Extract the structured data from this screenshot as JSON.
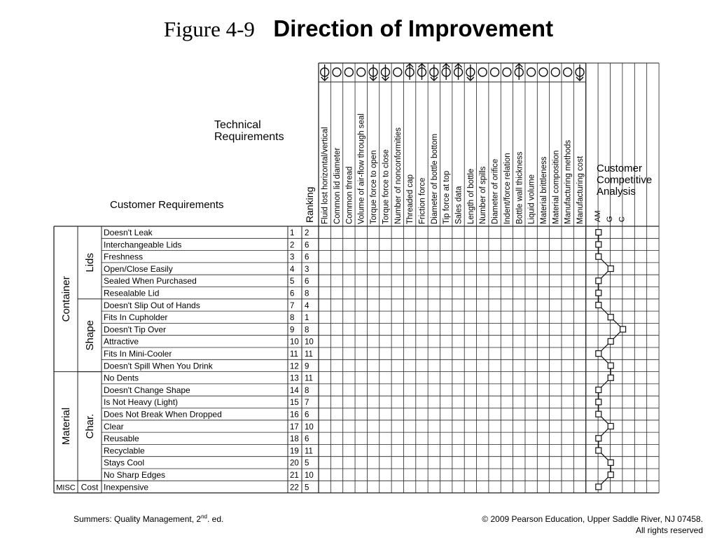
{
  "title": {
    "figure": "Figure 4-9",
    "heading": "Direction of Improvement"
  },
  "labels": {
    "technical_requirements": [
      "Technical",
      "Requirements"
    ],
    "customer_requirements": "Customer Requirements",
    "ranking": "Ranking",
    "competitive_analysis": [
      "Customer",
      "Competitive",
      "Analysis"
    ],
    "competitors": [
      "AM",
      "G",
      "C"
    ]
  },
  "technical_requirements": [
    {
      "label": "Fluid lost horizontal/vertical",
      "direction": "target-down"
    },
    {
      "label": "Common lid diameter",
      "direction": "target"
    },
    {
      "label": "Common thread",
      "direction": "target"
    },
    {
      "label": "Volume of air-flow through seal",
      "direction": "target"
    },
    {
      "label": "Torque force to open",
      "direction": "target-down"
    },
    {
      "label": "Torque force to close",
      "direction": "target-down"
    },
    {
      "label": "Number of nonconformities",
      "direction": "target"
    },
    {
      "label": "Threaded cap",
      "direction": "target-up"
    },
    {
      "label": "Friction force",
      "direction": "target-up"
    },
    {
      "label": "Diameter of bottle bottom",
      "direction": "target-down"
    },
    {
      "label": "Tip force at top",
      "direction": "target-up"
    },
    {
      "label": "Sales data",
      "direction": "target-up"
    },
    {
      "label": "Length of bottle",
      "direction": "target-down"
    },
    {
      "label": "Number of spills",
      "direction": "target"
    },
    {
      "label": "Diameter of orifice",
      "direction": "target"
    },
    {
      "label": "Indent/force relation",
      "direction": "target"
    },
    {
      "label": "Bottle wall thickness",
      "direction": "target-up"
    },
    {
      "label": "Liquid volume",
      "direction": "target"
    },
    {
      "label": "Material brittleness",
      "direction": "target"
    },
    {
      "label": "Material composition",
      "direction": "target"
    },
    {
      "label": "Manufacturing methods",
      "direction": "target"
    },
    {
      "label": "Manufacturing cost",
      "direction": "target-down"
    }
  ],
  "groups": [
    {
      "outer": "Container",
      "inner": [
        {
          "label": "Lids",
          "rows": 6
        },
        {
          "label": "Shape",
          "rows": 6
        }
      ]
    },
    {
      "outer": "Material",
      "inner": [
        {
          "label": "Char.",
          "rows": 9
        }
      ]
    },
    {
      "outer": "MISC",
      "inner": [
        {
          "label": "Cost",
          "rows": 1
        }
      ]
    }
  ],
  "customer_requirements": [
    {
      "name": "Doesn't Leak",
      "num": "1",
      "rank": "2",
      "am": 1
    },
    {
      "name": "Interchangeable Lids",
      "num": "2",
      "rank": "6",
      "am": 1
    },
    {
      "name": "Freshness",
      "num": "3",
      "rank": "6",
      "am": 1
    },
    {
      "name": "Open/Close Easily",
      "num": "4",
      "rank": "3",
      "am": 2
    },
    {
      "name": "Sealed When Purchased",
      "num": "5",
      "rank": "6",
      "am": 1
    },
    {
      "name": "Resealable Lid",
      "num": "6",
      "rank": "8",
      "am": 1
    },
    {
      "name": "Doesn't Slip Out of Hands",
      "num": "7",
      "rank": "4",
      "am": 1
    },
    {
      "name": "Fits In Cupholder",
      "num": "8",
      "rank": "1",
      "am": 2
    },
    {
      "name": "Doesn't Tip Over",
      "num": "9",
      "rank": "8",
      "am": 3
    },
    {
      "name": "Attractive",
      "num": "10",
      "rank": "10",
      "am": 2
    },
    {
      "name": "Fits In Mini-Cooler",
      "num": "11",
      "rank": "11",
      "am": 1
    },
    {
      "name": "Doesn't Spill When You Drink",
      "num": "12",
      "rank": "9",
      "am": 2
    },
    {
      "name": "No Dents",
      "num": "13",
      "rank": "11",
      "am": 2
    },
    {
      "name": "Doesn't Change Shape",
      "num": "14",
      "rank": "8",
      "am": 1
    },
    {
      "name": "Is Not Heavy (Light)",
      "num": "15",
      "rank": "7",
      "am": 1
    },
    {
      "name": "Does Not Break When Dropped",
      "num": "16",
      "rank": "6",
      "am": 1
    },
    {
      "name": "Clear",
      "num": "17",
      "rank": "10",
      "am": 2
    },
    {
      "name": "Reusable",
      "num": "18",
      "rank": "6",
      "am": 1
    },
    {
      "name": "Recyclable",
      "num": "19",
      "rank": "11",
      "am": 1
    },
    {
      "name": "Stays Cool",
      "num": "20",
      "rank": "5",
      "am": 2
    },
    {
      "name": "No Sharp Edges",
      "num": "21",
      "rank": "10",
      "am": 2
    },
    {
      "name": "Inexpensive",
      "num": "22",
      "rank": "5",
      "am": 1
    }
  ],
  "footer": {
    "left_text": "Summers: Quality Management, 2",
    "left_sup": "nd",
    "left_after": ". ed.",
    "right_line1": "© 2009 Pearson Education, Upper Saddle River, NJ 07458.",
    "right_line2": "All rights reserved"
  }
}
